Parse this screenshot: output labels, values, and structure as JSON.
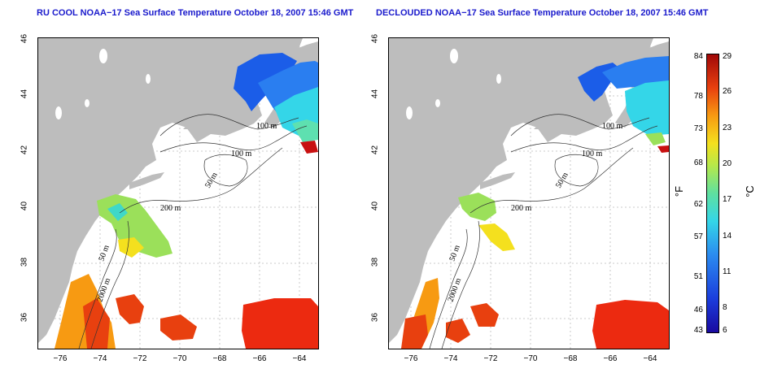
{
  "left_panel": {
    "title": "RU COOL NOAA−17 Sea Surface Temperature October 18, 2007 15:46 GMT"
  },
  "right_panel": {
    "title": "DECLOUDED NOAA−17 Sea Surface Temperature October 18, 2007 15:46 GMT"
  },
  "lat_ticks": [
    "46",
    "44",
    "42",
    "40",
    "38",
    "36"
  ],
  "lon_ticks": [
    "−76",
    "−74",
    "−72",
    "−70",
    "−68",
    "−66",
    "−64"
  ],
  "contour_labels": {
    "c100a": "100 m",
    "c100b": "100 m",
    "c50a": "50 m",
    "c200": "200 m",
    "c50b": "50 m",
    "c2000": "2000 m"
  },
  "colorbar": {
    "fahrenheit_unit": "°F",
    "celsius_unit": "°C",
    "fahrenheit_labels": [
      "84",
      "78",
      "73",
      "68",
      "62",
      "57",
      "51",
      "46",
      "43"
    ],
    "celsius_labels": [
      "29",
      "26",
      "23",
      "20",
      "17",
      "14",
      "11",
      "8",
      "6"
    ]
  },
  "colors": {
    "land": "#bdbdbd",
    "title": "#1a1acc",
    "cold": "#1b3ddc",
    "cyan": "#34d6e8",
    "green": "#9be05a",
    "yellow": "#f4e01e",
    "orange": "#f79a12",
    "red": "#e8200f"
  }
}
